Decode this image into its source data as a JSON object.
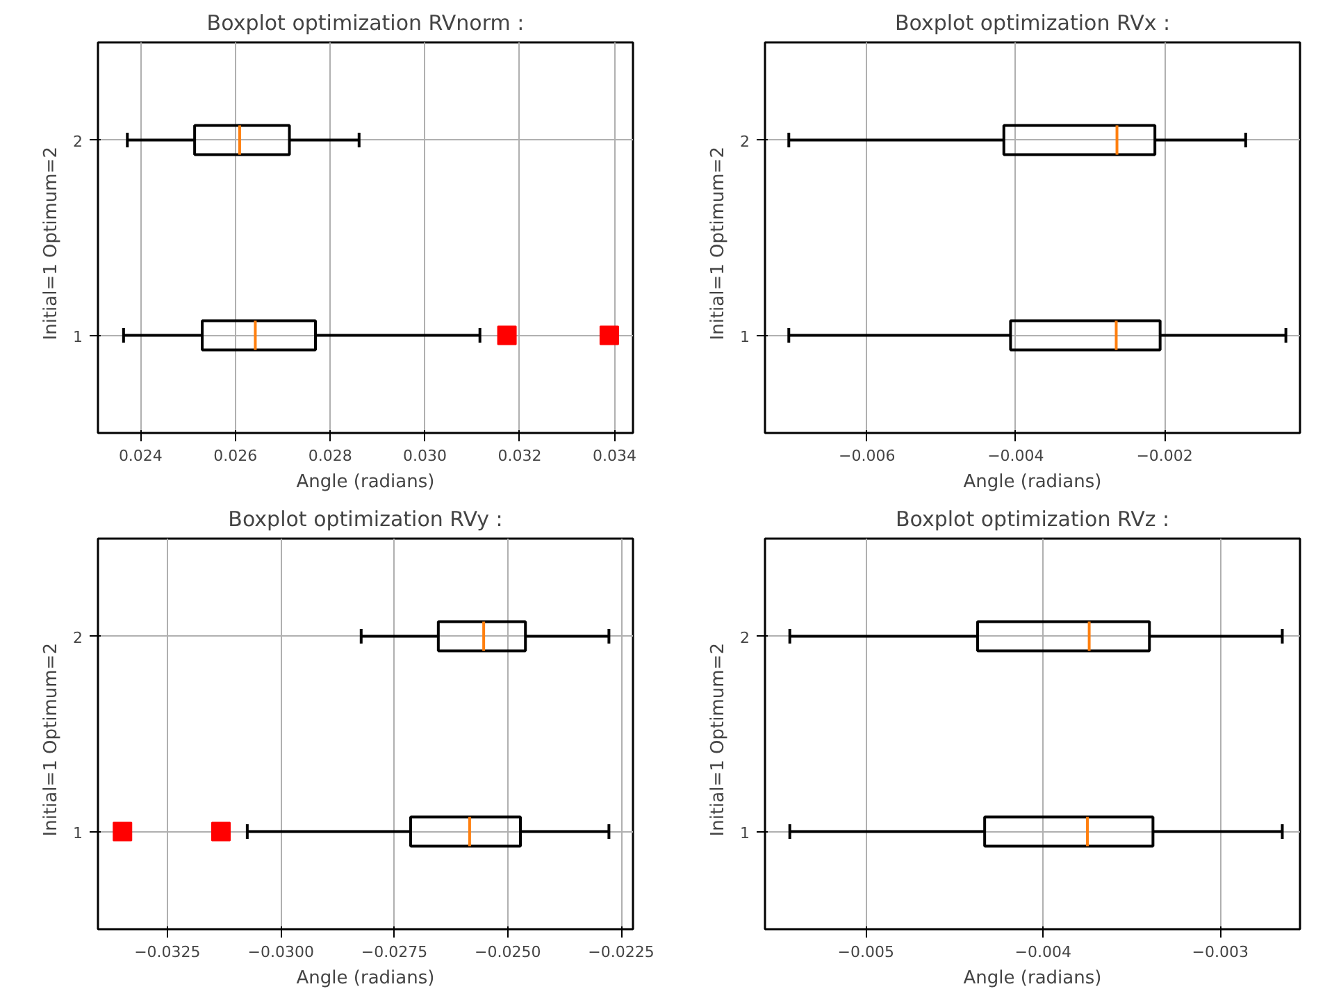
{
  "chart_data": [
    {
      "type": "box",
      "orientation": "horizontal",
      "title": "Boxplot optimization RVnorm :",
      "xlabel": "Angle (radians)",
      "ylabel": "Initial=1   Optimum=2",
      "categories": [
        "2",
        "1"
      ],
      "marker": "square",
      "grid": true,
      "xlim": [
        0.0231,
        0.03439
      ],
      "xticks": [
        0.024,
        0.026,
        0.028,
        {
          "value": 0.03,
          "label": "0.030"
        },
        0.032,
        0.034
      ],
      "boxes": [
        {
          "low": 0.02372,
          "q1": 0.02514,
          "median": 0.02609,
          "q3": 0.02714,
          "high": 0.02861
        },
        {
          "low": 0.02364,
          "q1": 0.0253,
          "median": 0.02642,
          "q3": 0.02769,
          "high": 0.03116,
          "outliers": [
            0.03173,
            0.03389
          ]
        }
      ]
    },
    {
      "type": "box",
      "orientation": "horizontal",
      "title": "Boxplot optimization RVx :",
      "xlabel": "Angle (radians)",
      "ylabel": "Initial=1   Optimum=2",
      "categories": [
        "2",
        "1"
      ],
      "grid": true,
      "xlim": [
        -0.00737,
        -0.00018
      ],
      "xticks": [
        {
          "value": -0.006,
          "label": "−0.006"
        },
        {
          "value": -0.004,
          "label": "−0.004"
        },
        {
          "value": -0.002,
          "label": "−0.002"
        }
      ],
      "boxes": [
        {
          "low": -0.00705,
          "q1": -0.00416,
          "median": -0.00264,
          "q3": -0.00213,
          "high": -0.00091
        },
        {
          "low": -0.00705,
          "q1": -0.00407,
          "median": -0.00265,
          "q3": -0.00206,
          "high": -0.00037
        }
      ]
    },
    {
      "type": "box",
      "orientation": "horizontal",
      "title": "Boxplot optimization RVy :",
      "xlabel": "Angle (radians)",
      "ylabel": "Initial=1   Optimum=2",
      "categories": [
        "2",
        "1"
      ],
      "marker": "square",
      "grid": true,
      "xlim": [
        -0.03403,
        -0.02224
      ],
      "xticks": [
        {
          "value": -0.0325,
          "label": "−0.0325"
        },
        {
          "value": -0.03,
          "label": "−0.0300"
        },
        {
          "value": -0.0275,
          "label": "−0.0275"
        },
        {
          "value": -0.025,
          "label": "−0.0250"
        },
        {
          "value": -0.0225,
          "label": "−0.0225"
        }
      ],
      "boxes": [
        {
          "low": -0.02823,
          "q1": -0.02653,
          "median": -0.02553,
          "q3": -0.02461,
          "high": -0.02277
        },
        {
          "low": -0.03074,
          "q1": -0.02714,
          "median": -0.02584,
          "q3": -0.02472,
          "high": -0.02277,
          "outliers": [
            -0.03349,
            -0.03132
          ]
        }
      ]
    },
    {
      "type": "box",
      "orientation": "horizontal",
      "title": "Boxplot optimization RVz :",
      "xlabel": "Angle (radians)",
      "ylabel": "Initial=1   Optimum=2",
      "categories": [
        "2",
        "1"
      ],
      "grid": true,
      "xlim": [
        -0.00557,
        -0.00255
      ],
      "xticks": [
        {
          "value": -0.005,
          "label": "−0.005"
        },
        {
          "value": -0.004,
          "label": "−0.004"
        },
        {
          "value": -0.003,
          "label": "−0.003"
        }
      ],
      "boxes": [
        {
          "low": -0.00543,
          "q1": -0.00437,
          "median": -0.00374,
          "q3": -0.0034,
          "high": -0.00265
        },
        {
          "low": -0.00543,
          "q1": -0.00433,
          "median": -0.00375,
          "q3": -0.00338,
          "high": -0.00265
        }
      ]
    }
  ]
}
